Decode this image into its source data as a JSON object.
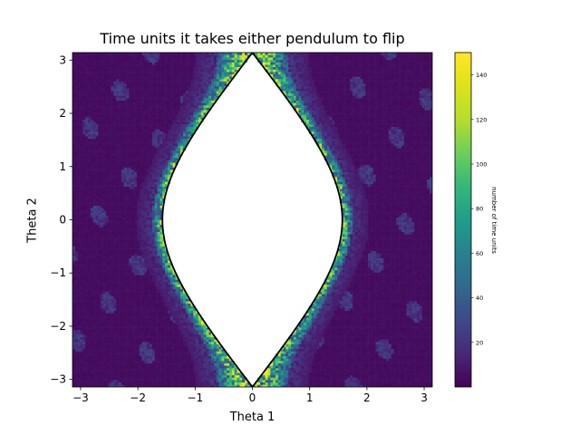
{
  "chart_data": {
    "type": "heatmap",
    "title": "Time units it takes either pendulum to flip",
    "xlabel": "Theta 1",
    "ylabel": "Theta 2",
    "xlim": [
      -3.14159,
      3.14159
    ],
    "ylim": [
      -3.14159,
      3.14159
    ],
    "x_ticks": [
      -3,
      -2,
      -1,
      0,
      1,
      2,
      3
    ],
    "x_tick_labels": [
      "−3",
      "−2",
      "−1",
      "0",
      "1",
      "2",
      "3"
    ],
    "y_ticks": [
      -3,
      -2,
      -1,
      0,
      1,
      2,
      3
    ],
    "y_tick_labels": [
      "−3",
      "−2",
      "−1",
      "0",
      "1",
      "2",
      "3"
    ],
    "grid": false,
    "colormap": "viridis",
    "colorbar": {
      "label": "number of time units",
      "min": 0,
      "max": 150,
      "ticks": [
        20,
        40,
        60,
        80,
        100,
        120,
        140
      ],
      "tick_labels": [
        "20",
        "40",
        "60",
        "80",
        "100",
        "120",
        "140"
      ]
    },
    "boundary_curve": {
      "description": "no-flip region boundary",
      "equation": "2*cos(theta1) + cos(theta2) = 1",
      "color": "#000000"
    },
    "background_value": 3
  }
}
